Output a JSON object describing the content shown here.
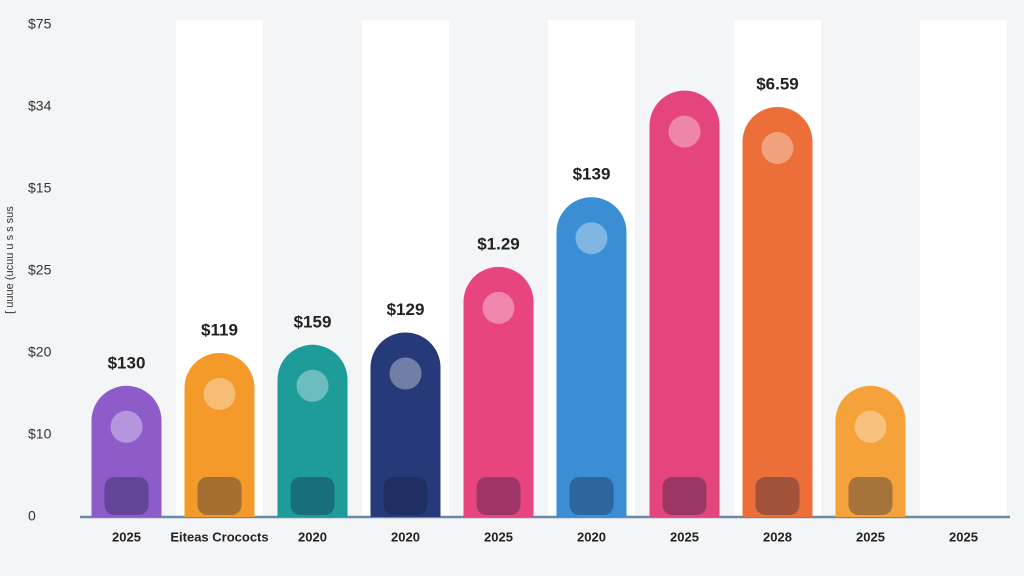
{
  "chart_data": {
    "type": "bar",
    "y_label": "[ uuue (ucuu u s s sus",
    "categories": [
      "2025",
      "Eiteas Crococts",
      "2020",
      "2020",
      "2025",
      "2020",
      "2025",
      "2028",
      "2025",
      "2025"
    ],
    "values": [
      1.6,
      2.0,
      2.1,
      2.25,
      3.05,
      3.9,
      5.2,
      5.0,
      1.6,
      null
    ],
    "bar_labels": [
      "$130",
      "$119",
      "$159",
      "$129",
      "$1.29",
      "$139",
      null,
      "$6.59",
      null,
      null
    ],
    "colors": [
      "#8e5cc9",
      "#f39a2b",
      "#1d9c9a",
      "#263a7a",
      "#e8457f",
      "#3b8ed4",
      "#e4457c",
      "#ec6f3a",
      "#f5a23a",
      "#4bb5b0"
    ],
    "ylim": [
      0,
      6
    ],
    "yticks": [
      0,
      {
        "value": 1,
        "label": "$10"
      },
      {
        "value": 2,
        "label": "$20"
      },
      {
        "value": 3,
        "label": "$25"
      },
      {
        "value": 4,
        "label": "$15"
      },
      {
        "value": 5,
        "label": "$34"
      },
      {
        "value": 6,
        "label": "$75"
      }
    ]
  }
}
